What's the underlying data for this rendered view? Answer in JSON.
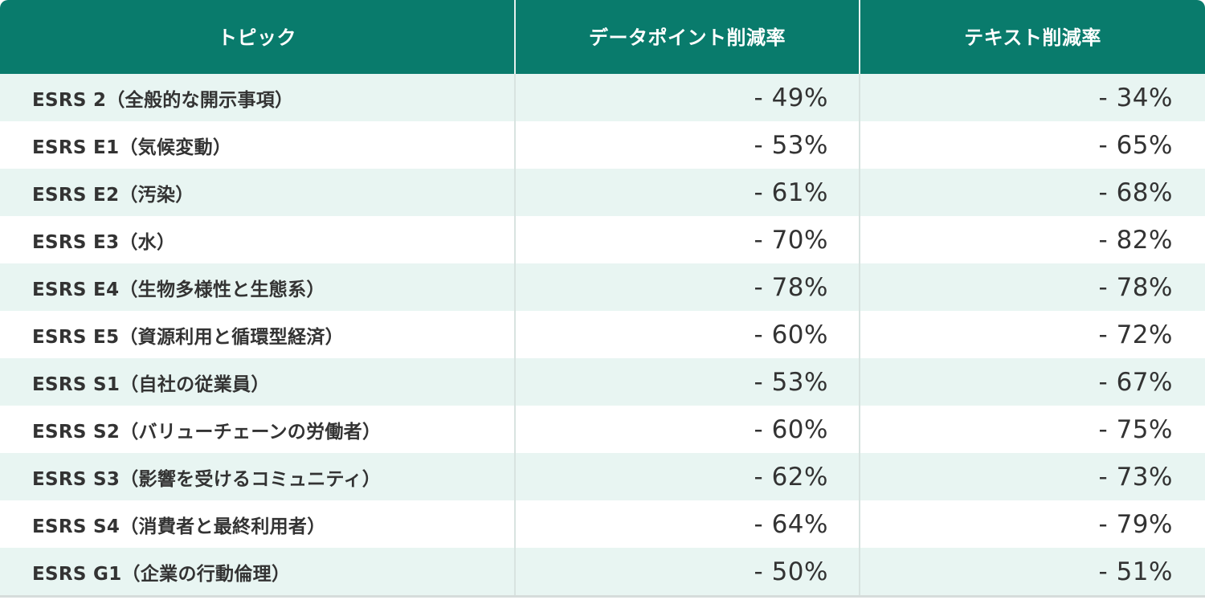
{
  "chart_data": {
    "type": "table",
    "columns": [
      "トピック",
      "データポイント削減率",
      "テキスト削減率"
    ],
    "rows": [
      {
        "topic": "ESRS 2（全般的な開示事項）",
        "datapoint": "- 49%",
        "text": "- 34%"
      },
      {
        "topic": "ESRS E1（気候変動）",
        "datapoint": "- 53%",
        "text": "- 65%"
      },
      {
        "topic": "ESRS E2（汚染）",
        "datapoint": "- 61%",
        "text": "- 68%"
      },
      {
        "topic": "ESRS E3（水）",
        "datapoint": "- 70%",
        "text": "- 82%"
      },
      {
        "topic": "ESRS E4（生物多様性と生態系）",
        "datapoint": "- 78%",
        "text": "- 78%"
      },
      {
        "topic": "ESRS E5（資源利用と循環型経済）",
        "datapoint": "- 60%",
        "text": "- 72%"
      },
      {
        "topic": "ESRS S1（自社の従業員）",
        "datapoint": "- 53%",
        "text": "- 67%"
      },
      {
        "topic": "ESRS S2（バリューチェーンの労働者）",
        "datapoint": "- 60%",
        "text": "- 75%"
      },
      {
        "topic": "ESRS S3（影響を受けるコミュニティ）",
        "datapoint": "- 62%",
        "text": "- 73%"
      },
      {
        "topic": "ESRS S4（消費者と最終利用者）",
        "datapoint": "- 64%",
        "text": "- 79%"
      },
      {
        "topic": "ESRS G1（企業の行動倫理）",
        "datapoint": "- 50%",
        "text": "- 51%"
      }
    ]
  },
  "colors": {
    "header_bg": "#097b6c",
    "row_alt_bg": "#e8f5f2",
    "row_plain_bg": "#ffffff",
    "text": "#333333"
  }
}
